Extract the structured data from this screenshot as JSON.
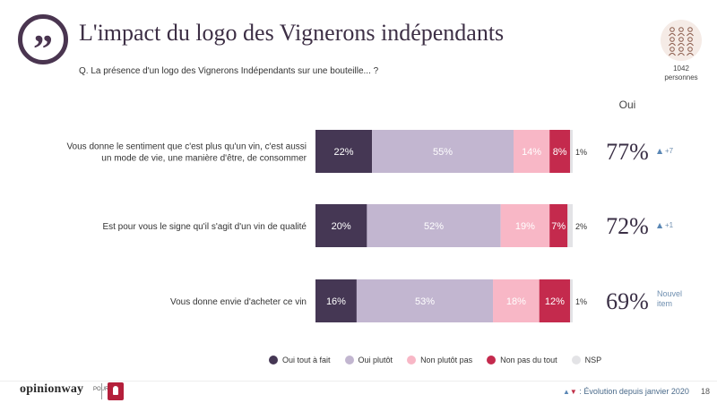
{
  "header": {
    "title": "L'impact du logo des Vignerons indépendants",
    "question": "Q. La présence d'un logo des Vignerons Indépendants sur une bouteille... ?",
    "sample_count": "1042",
    "sample_label": "personnes",
    "oui_label": "Oui"
  },
  "chart_data": {
    "type": "bar",
    "orientation": "horizontal",
    "stacked": true,
    "normalized": true,
    "categories": [
      "Vous donne le sentiment que c'est plus qu'un vin, c'est aussi un mode de vie, une manière d'être, de consommer",
      "Est pour vous le signe qu'il s'agit d'un vin de qualité",
      "Vous donne envie d'acheter ce vin"
    ],
    "category_lines": [
      [
        "Vous donne le sentiment que c'est plus qu'un vin, c'est aussi",
        "un mode de vie, une manière d'être, de consommer"
      ],
      [
        "Est pour vous le signe qu'il s'agit d'un vin de qualité"
      ],
      [
        "Vous donne envie d'acheter ce vin"
      ]
    ],
    "series": [
      {
        "name": "Oui tout à fait",
        "color": "#453754",
        "label_color": "#ffffff",
        "values": [
          22,
          20,
          16
        ]
      },
      {
        "name": "Oui plutôt",
        "color": "#c2b6d0",
        "label_color": "#ffffff",
        "values": [
          55,
          52,
          53
        ]
      },
      {
        "name": "Non plutôt pas",
        "color": "#f8b7c6",
        "label_color": "#ffffff",
        "values": [
          14,
          19,
          18
        ]
      },
      {
        "name": "Non pas du tout",
        "color": "#c42a4d",
        "label_color": "#ffffff",
        "values": [
          8,
          7,
          12
        ]
      },
      {
        "name": "NSP",
        "color": "#e3e3e6",
        "label_color": "#333333",
        "values": [
          1,
          2,
          1
        ]
      }
    ],
    "totals": {
      "label": "Oui",
      "values": [
        "77%",
        "72%",
        "69%"
      ]
    },
    "evolution": [
      {
        "direction": "up",
        "text": "+7"
      },
      {
        "direction": "up",
        "text": "+1"
      },
      {
        "direction": "none",
        "text": "Nouvel item"
      }
    ],
    "legend_position": "bottom",
    "grid": false
  },
  "footer": {
    "brand": "opinionway",
    "pour": "POUR",
    "evolution_note": ": Évolution depuis janvier 2020",
    "page_number": "18"
  },
  "colors": {
    "title": "#3d2f45",
    "up_arrow": "#5a87b5",
    "down_arrow": "#c03048"
  }
}
